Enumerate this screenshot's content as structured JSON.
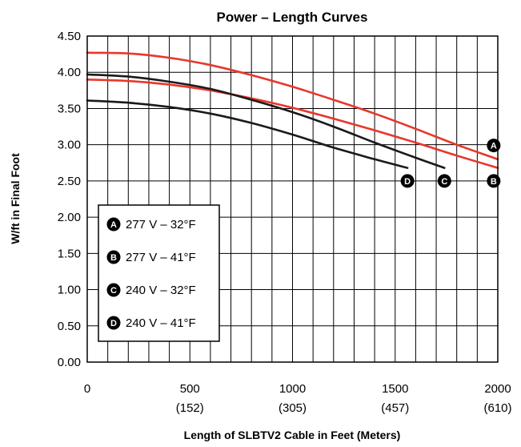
{
  "chart_data": {
    "type": "line",
    "title": "Power – Length Curves",
    "xlabel": "Length of SLBTV2 Cable in Feet (Meters)",
    "ylabel": "W/ft in Final Foot",
    "xlim": [
      0,
      2000
    ],
    "ylim": [
      0,
      4.5
    ],
    "x_ticks": [
      {
        "value": 0,
        "label": "0",
        "sublabel": ""
      },
      {
        "value": 500,
        "label": "500",
        "sublabel": "(152)"
      },
      {
        "value": 1000,
        "label": "1000",
        "sublabel": "(305)"
      },
      {
        "value": 1500,
        "label": "1500",
        "sublabel": "(457)"
      },
      {
        "value": 2000,
        "label": "2000",
        "sublabel": "(610)"
      }
    ],
    "y_ticks": [
      "0.00",
      "0.50",
      "1.00",
      "1.50",
      "2.00",
      "2.50",
      "3.00",
      "3.50",
      "4.00",
      "4.50"
    ],
    "grid": true,
    "legend_position": "lower-left",
    "series": [
      {
        "id": "A",
        "name": "277 V – 32°F",
        "color": "#e8372b",
        "x": [
          0,
          200,
          400,
          600,
          800,
          1000,
          1200,
          1400,
          1600,
          1800,
          2000
        ],
        "y": [
          4.27,
          4.26,
          4.2,
          4.1,
          3.96,
          3.8,
          3.62,
          3.43,
          3.22,
          3.0,
          2.8
        ]
      },
      {
        "id": "B",
        "name": "277 V – 41°F",
        "color": "#e8372b",
        "x": [
          0,
          200,
          400,
          600,
          800,
          1000,
          1200,
          1400,
          1600,
          1800,
          2000
        ],
        "y": [
          3.9,
          3.88,
          3.83,
          3.75,
          3.64,
          3.51,
          3.36,
          3.2,
          3.03,
          2.85,
          2.68
        ]
      },
      {
        "id": "C",
        "name": "240 V – 32°F",
        "color": "#1a1a1a",
        "x": [
          0,
          200,
          400,
          600,
          800,
          1000,
          1200,
          1400,
          1600,
          1740
        ],
        "y": [
          3.97,
          3.94,
          3.87,
          3.77,
          3.62,
          3.45,
          3.25,
          3.03,
          2.82,
          2.68
        ]
      },
      {
        "id": "D",
        "name": "240 V – 41°F",
        "color": "#1a1a1a",
        "x": [
          0,
          200,
          400,
          600,
          800,
          1000,
          1200,
          1400,
          1560
        ],
        "y": [
          3.61,
          3.58,
          3.52,
          3.43,
          3.3,
          3.14,
          2.96,
          2.8,
          2.68
        ]
      }
    ],
    "end_markers": [
      {
        "letter": "A",
        "x": 1980,
        "y": 2.99
      },
      {
        "letter": "B",
        "x": 1980,
        "y": 2.5
      },
      {
        "letter": "C",
        "x": 1740,
        "y": 2.5
      },
      {
        "letter": "D",
        "x": 1560,
        "y": 2.5
      }
    ]
  }
}
